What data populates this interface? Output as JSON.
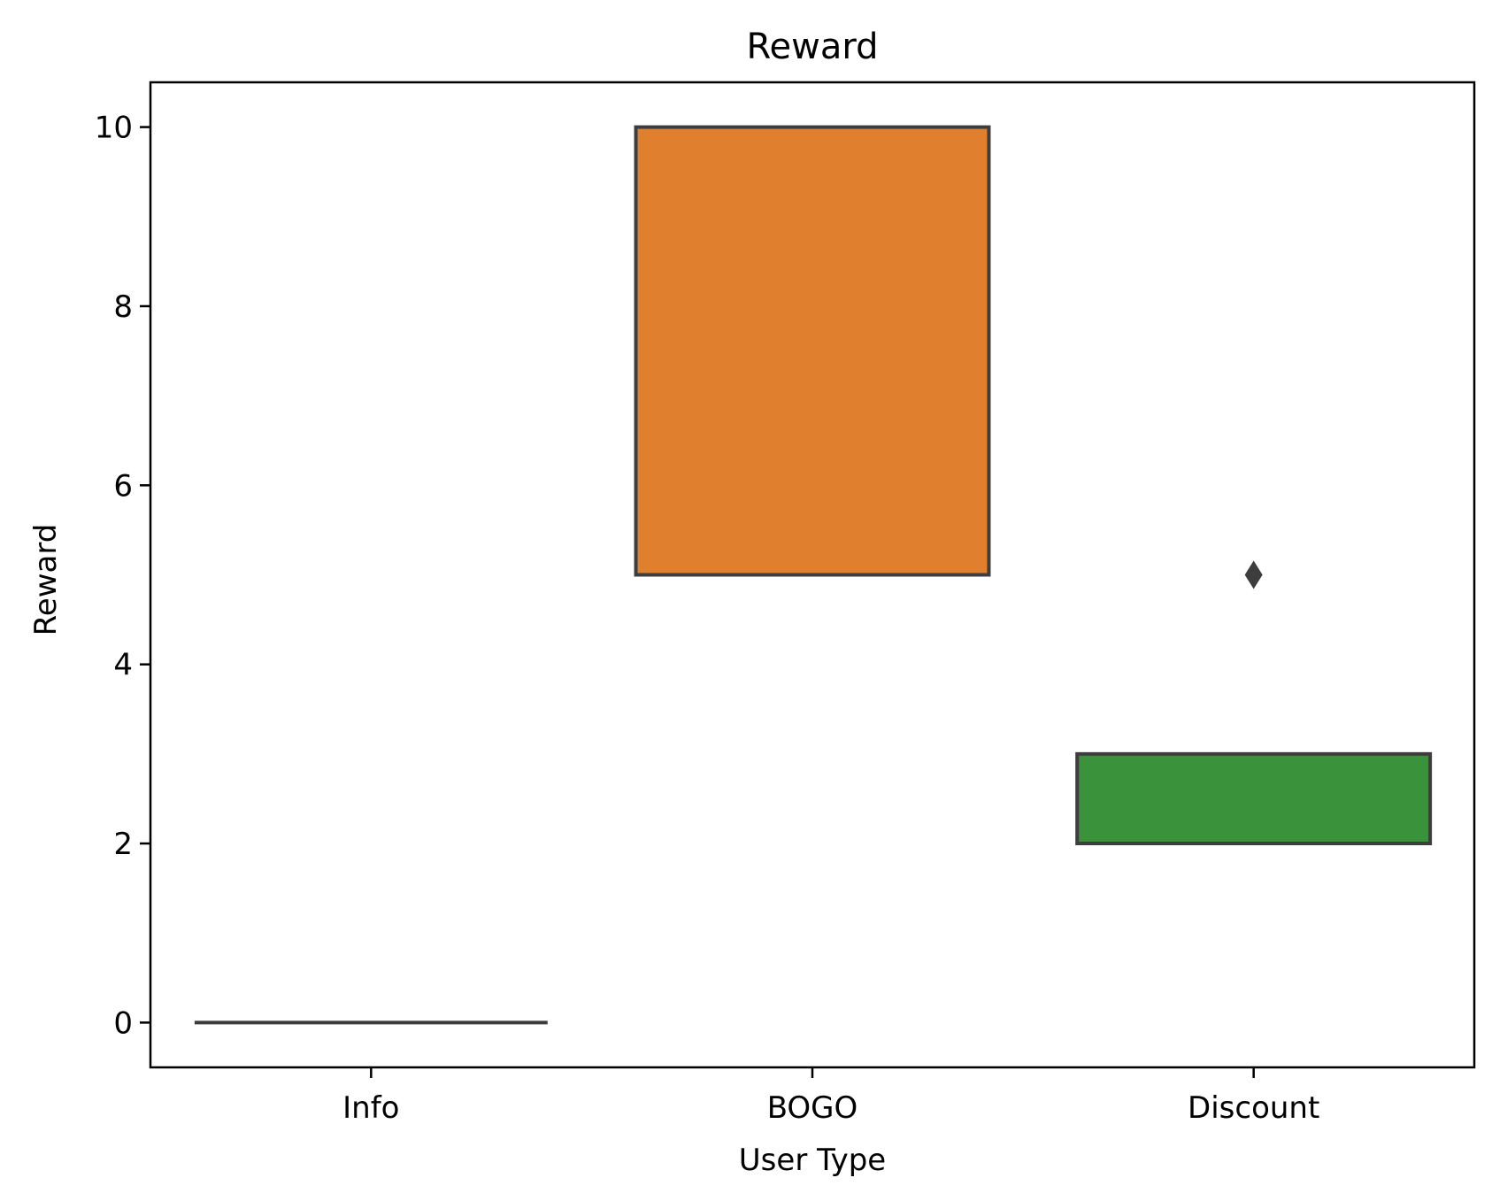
{
  "chart_data": {
    "type": "box",
    "title": "Reward",
    "xlabel": "User Type",
    "ylabel": "Reward",
    "ylim": [
      -0.5,
      10.5
    ],
    "yticks": [
      0,
      2,
      4,
      6,
      8,
      10
    ],
    "grid": false,
    "categories": [
      "Info",
      "BOGO",
      "Discount"
    ],
    "boxes": [
      {
        "category": "Info",
        "q1": 0,
        "median": 0,
        "q3": 0,
        "whisker_low": 0,
        "whisker_high": 0,
        "outliers": [],
        "color": "#3a3a3a"
      },
      {
        "category": "BOGO",
        "q1": 5,
        "median": 5,
        "q3": 10,
        "whisker_low": 5,
        "whisker_high": 10,
        "outliers": [],
        "color": "#e0802e"
      },
      {
        "category": "Discount",
        "q1": 2,
        "median": 2,
        "q3": 3,
        "whisker_low": 2,
        "whisker_high": 3,
        "outliers": [
          5
        ],
        "color": "#3a923a"
      }
    ],
    "edge_color": "#3d3d3d"
  }
}
